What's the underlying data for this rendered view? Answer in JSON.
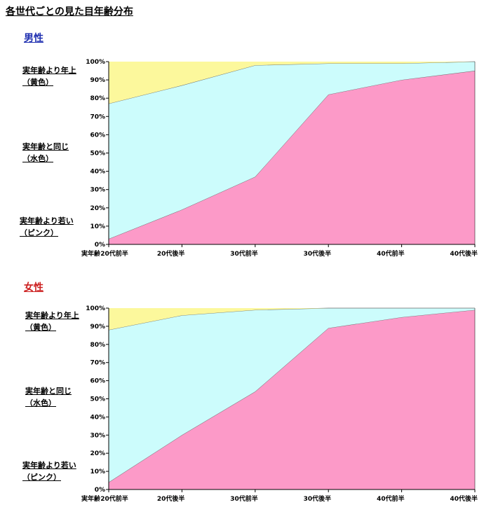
{
  "title": "各世代ごとの見た目年齢分布",
  "colors": {
    "younger": "#fc9ac8",
    "same": "#ccfcfc",
    "older": "#fcf89c",
    "male_title": "#1f2fb0",
    "female_title": "#cc1f1f"
  },
  "chart_data": [
    {
      "type": "area",
      "title": "男性",
      "xlabel": "実年齢",
      "categories": [
        "20代前半",
        "20代後半",
        "30代前半",
        "30代後半",
        "40代前半",
        "40代後半"
      ],
      "ylim": [
        0,
        100
      ],
      "yticks": [
        "0%",
        "10%",
        "20%",
        "30%",
        "40%",
        "50%",
        "60%",
        "70%",
        "80%",
        "90%",
        "100%"
      ],
      "stacked": true,
      "series": [
        {
          "name": "実年齢より若い（ピンク）",
          "color": "#fc9ac8",
          "values": [
            3,
            19,
            37,
            82,
            90,
            95
          ]
        },
        {
          "name": "実年齢と同じ（水色）",
          "color": "#ccfcfc",
          "values": [
            74,
            68,
            61,
            17,
            9,
            5
          ]
        },
        {
          "name": "実年齢より年上（黄色）",
          "color": "#fcf89c",
          "values": [
            23,
            13,
            2,
            1,
            1,
            0
          ]
        }
      ],
      "labels": [
        {
          "line1": "実年齢より年上",
          "line2": "（黄色）"
        },
        {
          "line1": "実年齢と同じ",
          "line2": "（水色）"
        },
        {
          "line1": "実年齢より若い",
          "line2": "（ピンク）"
        }
      ]
    },
    {
      "type": "area",
      "title": "女性",
      "xlabel": "実年齢",
      "categories": [
        "20代前半",
        "20代後半",
        "30代前半",
        "30代後半",
        "40代前半",
        "40代後半"
      ],
      "ylim": [
        0,
        100
      ],
      "yticks": [
        "0%",
        "10%",
        "20%",
        "30%",
        "40%",
        "50%",
        "60%",
        "70%",
        "80%",
        "90%",
        "100%"
      ],
      "stacked": true,
      "series": [
        {
          "name": "実年齢より若い（ピンク）",
          "color": "#fc9ac8",
          "values": [
            4,
            30,
            54,
            89,
            95,
            99
          ]
        },
        {
          "name": "実年齢と同じ（水色）",
          "color": "#ccfcfc",
          "values": [
            84,
            66,
            45,
            11,
            5,
            1
          ]
        },
        {
          "name": "実年齢より年上（黄色）",
          "color": "#fcf89c",
          "values": [
            12,
            4,
            1,
            0,
            0,
            0
          ]
        }
      ],
      "labels": [
        {
          "line1": "実年齢より年上",
          "line2": "（黄色）"
        },
        {
          "line1": "実年齢と同じ",
          "line2": "（水色）"
        },
        {
          "line1": "実年齢より若い",
          "line2": "（ピンク）"
        }
      ]
    }
  ]
}
